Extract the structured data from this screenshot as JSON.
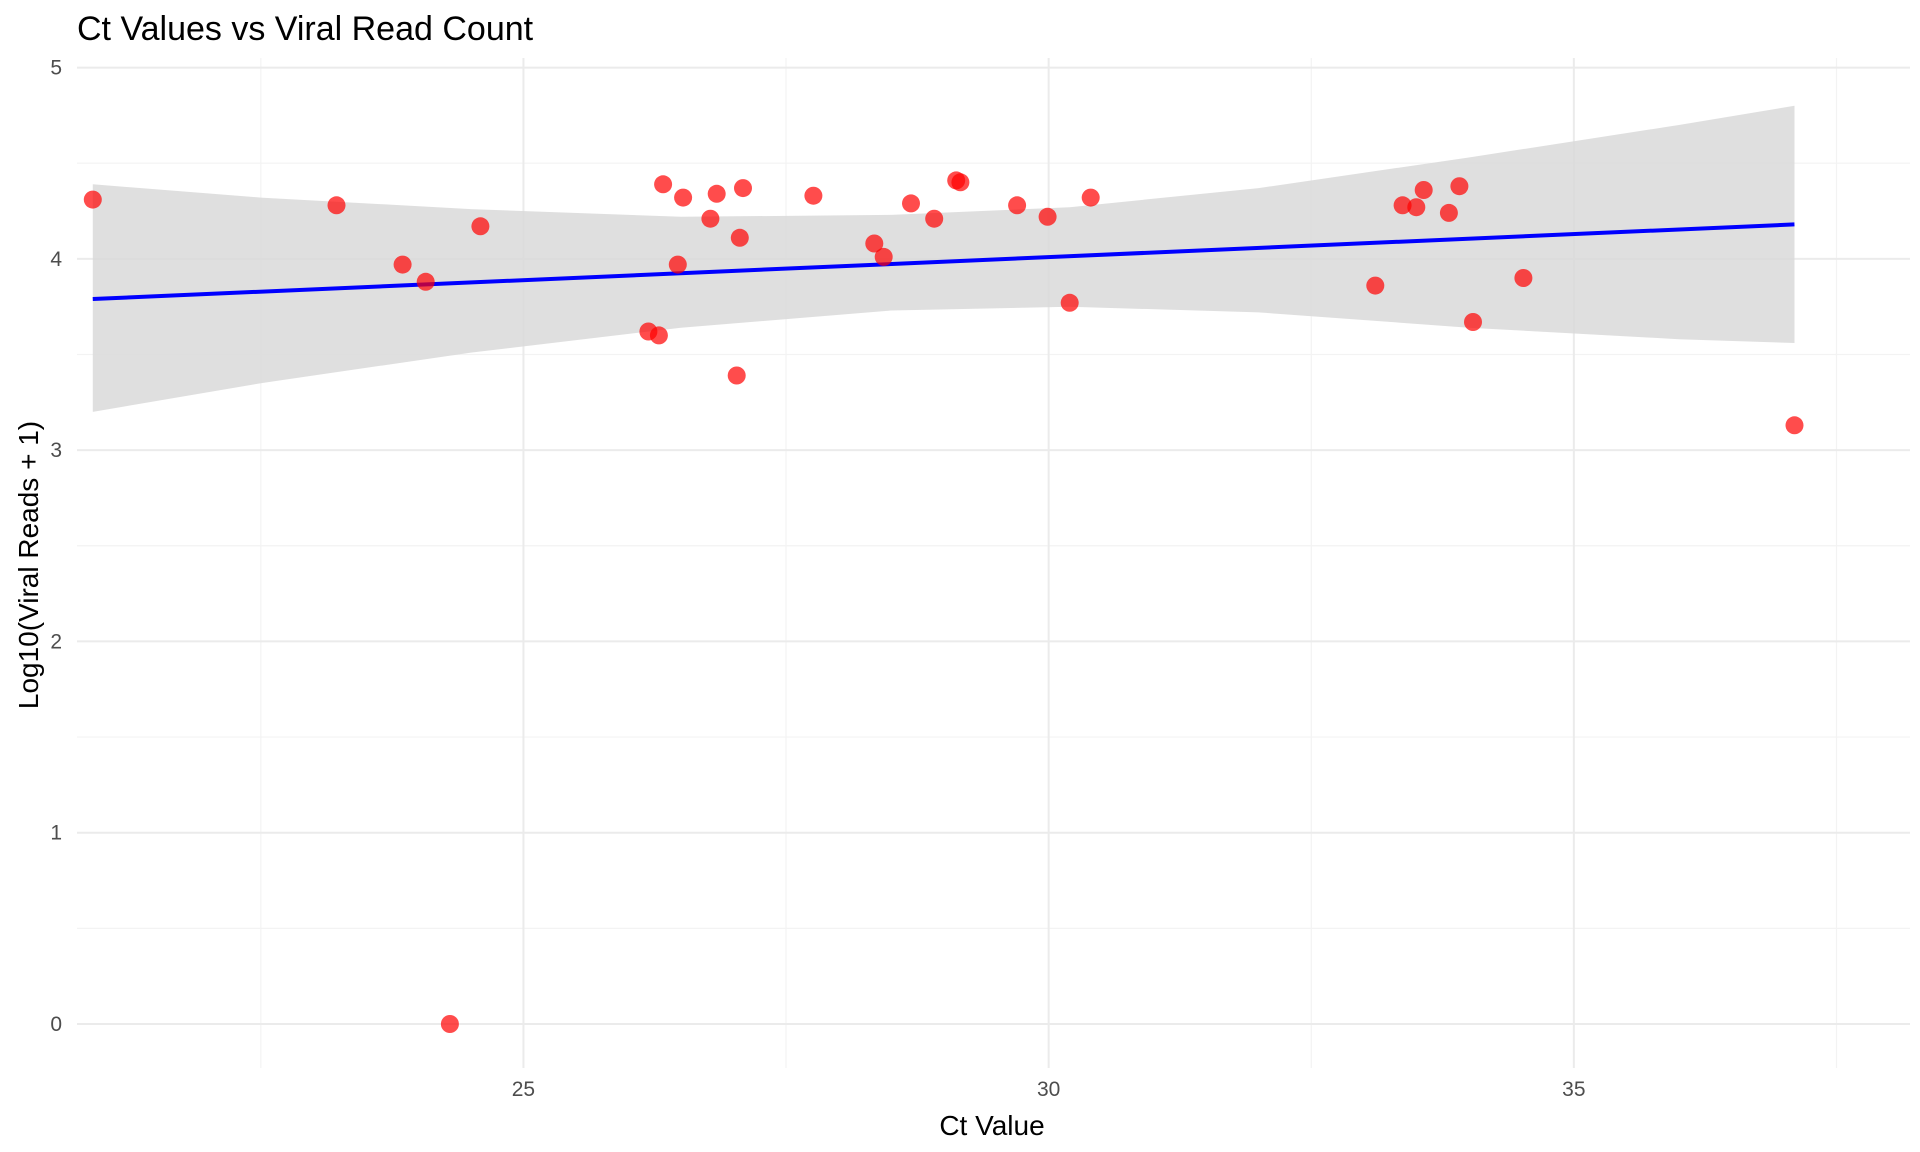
{
  "chart_data": {
    "type": "scatter",
    "title": "Ct Values vs Viral Read Count",
    "xlabel": "Ct Value",
    "ylabel": "Log10(Viral Reads + 1)",
    "xlim": [
      20.75,
      38.2
    ],
    "ylim": [
      -0.23,
      5.05
    ],
    "x_ticks": [
      25,
      30,
      35
    ],
    "y_ticks": [
      0,
      1,
      2,
      3,
      4,
      5
    ],
    "grid": true,
    "point_color": "#ff0000",
    "line_color": "#0000ff",
    "band_color": "#d9d9d9",
    "points": [
      {
        "x": 20.9,
        "y": 4.31
      },
      {
        "x": 23.22,
        "y": 4.28
      },
      {
        "x": 23.85,
        "y": 3.97
      },
      {
        "x": 24.07,
        "y": 3.88
      },
      {
        "x": 24.3,
        "y": 0.0
      },
      {
        "x": 24.59,
        "y": 4.17
      },
      {
        "x": 26.19,
        "y": 3.62
      },
      {
        "x": 26.29,
        "y": 3.6
      },
      {
        "x": 26.33,
        "y": 4.39
      },
      {
        "x": 26.47,
        "y": 3.97
      },
      {
        "x": 26.52,
        "y": 4.32
      },
      {
        "x": 26.78,
        "y": 4.21
      },
      {
        "x": 26.84,
        "y": 4.34
      },
      {
        "x": 27.03,
        "y": 3.39
      },
      {
        "x": 27.06,
        "y": 4.11
      },
      {
        "x": 27.09,
        "y": 4.37
      },
      {
        "x": 27.76,
        "y": 4.33
      },
      {
        "x": 28.34,
        "y": 4.08
      },
      {
        "x": 28.43,
        "y": 4.01
      },
      {
        "x": 28.69,
        "y": 4.29
      },
      {
        "x": 28.91,
        "y": 4.21
      },
      {
        "x": 29.12,
        "y": 4.41
      },
      {
        "x": 29.16,
        "y": 4.4
      },
      {
        "x": 29.7,
        "y": 4.28
      },
      {
        "x": 29.99,
        "y": 4.22
      },
      {
        "x": 30.2,
        "y": 3.77
      },
      {
        "x": 30.4,
        "y": 4.32
      },
      {
        "x": 33.11,
        "y": 3.86
      },
      {
        "x": 33.37,
        "y": 4.28
      },
      {
        "x": 33.5,
        "y": 4.27
      },
      {
        "x": 33.57,
        "y": 4.36
      },
      {
        "x": 33.81,
        "y": 4.24
      },
      {
        "x": 33.91,
        "y": 4.38
      },
      {
        "x": 34.04,
        "y": 3.67
      },
      {
        "x": 34.52,
        "y": 3.9
      },
      {
        "x": 37.1,
        "y": 3.13
      }
    ],
    "trend_line": {
      "x": [
        20.9,
        37.1
      ],
      "y": [
        3.79,
        4.18
      ]
    },
    "confidence_band": {
      "x": [
        20.9,
        22.5,
        24.5,
        26.5,
        28.5,
        30.2,
        32.0,
        34.0,
        36.0,
        37.1
      ],
      "upper": [
        4.39,
        4.32,
        4.26,
        4.22,
        4.23,
        4.27,
        4.37,
        4.53,
        4.7,
        4.8
      ],
      "lower": [
        3.2,
        3.35,
        3.51,
        3.64,
        3.73,
        3.75,
        3.72,
        3.64,
        3.58,
        3.56
      ]
    }
  }
}
